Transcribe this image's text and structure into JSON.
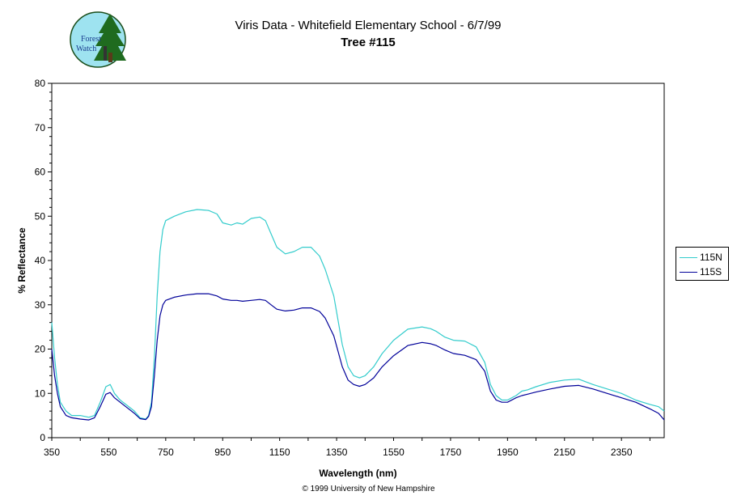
{
  "header": {
    "title": "Viris Data - Whitefield Elementary School - 6/7/99",
    "subtitle": "Tree #115"
  },
  "logo": {
    "text_line1": "Forest",
    "text_line2": "Watch",
    "icon": "tree-logo-icon"
  },
  "footer": {
    "copyright": "© 1999 University of New Hampshire"
  },
  "colors": {
    "series_115N": "#33CCCC",
    "series_115S": "#000099"
  },
  "chart_data": {
    "type": "line",
    "title": "Viris Data - Whitefield Elementary School - 6/7/99",
    "subtitle": "Tree #115",
    "xlabel": "Wavelength (nm)",
    "ylabel": "% Reflectance",
    "xlim": [
      350,
      2500
    ],
    "ylim": [
      0,
      80
    ],
    "xticks": [
      350,
      550,
      750,
      950,
      1150,
      1350,
      1550,
      1750,
      1950,
      2150,
      2350
    ],
    "yticks": [
      0,
      10,
      20,
      30,
      40,
      50,
      60,
      70,
      80
    ],
    "grid": false,
    "legend_position": "right",
    "series": [
      {
        "name": "115N",
        "color": "#33CCCC",
        "x": [
          350,
          360,
          370,
          380,
          400,
          420,
          450,
          480,
          500,
          520,
          540,
          555,
          570,
          590,
          610,
          640,
          660,
          680,
          690,
          700,
          710,
          720,
          730,
          740,
          750,
          780,
          820,
          860,
          900,
          930,
          950,
          980,
          1000,
          1020,
          1050,
          1080,
          1100,
          1120,
          1140,
          1170,
          1200,
          1230,
          1260,
          1290,
          1310,
          1340,
          1370,
          1390,
          1410,
          1430,
          1450,
          1480,
          1510,
          1550,
          1600,
          1650,
          1680,
          1700,
          1730,
          1760,
          1800,
          1840,
          1870,
          1890,
          1910,
          1930,
          1950,
          1980,
          2000,
          2020,
          2050,
          2100,
          2150,
          2200,
          2250,
          2300,
          2350,
          2400,
          2450,
          2480,
          2500
        ],
        "y": [
          26,
          18,
          12,
          8,
          6,
          5,
          5,
          4.6,
          5,
          8,
          11.5,
          12,
          10,
          8.5,
          7.5,
          6,
          4.5,
          4.2,
          5,
          8,
          18,
          32,
          42,
          47,
          49,
          50,
          51,
          51.5,
          51.3,
          50.5,
          48.5,
          48,
          48.5,
          48.2,
          49.5,
          49.8,
          49,
          46,
          43,
          41.5,
          42,
          43,
          43,
          41,
          38,
          32,
          21,
          16,
          14,
          13.5,
          14,
          16,
          19,
          22,
          24.5,
          25,
          24.6,
          24,
          22.7,
          22,
          21.8,
          20.5,
          17,
          12,
          9.5,
          8.5,
          8.5,
          9.5,
          10.5,
          10.8,
          11.5,
          12.5,
          13,
          13.2,
          12,
          11,
          10,
          8.5,
          7.5,
          7,
          6
        ]
      },
      {
        "name": "115S",
        "color": "#000099",
        "x": [
          350,
          360,
          370,
          380,
          400,
          420,
          450,
          480,
          500,
          520,
          540,
          555,
          570,
          590,
          610,
          640,
          660,
          680,
          690,
          700,
          710,
          720,
          730,
          740,
          750,
          780,
          820,
          860,
          900,
          930,
          950,
          980,
          1000,
          1020,
          1050,
          1080,
          1100,
          1120,
          1140,
          1170,
          1200,
          1230,
          1260,
          1290,
          1310,
          1340,
          1370,
          1390,
          1410,
          1430,
          1450,
          1480,
          1510,
          1550,
          1600,
          1650,
          1680,
          1700,
          1730,
          1760,
          1800,
          1840,
          1870,
          1890,
          1910,
          1930,
          1950,
          1980,
          2000,
          2020,
          2050,
          2100,
          2150,
          2200,
          2250,
          2300,
          2350,
          2400,
          2450,
          2480,
          2500
        ],
        "y": [
          20,
          14,
          10,
          7,
          5,
          4.5,
          4.2,
          4,
          4.5,
          7,
          9.8,
          10.2,
          9,
          8,
          7,
          5.5,
          4.3,
          4.1,
          4.8,
          7,
          14,
          22,
          27.5,
          30,
          31,
          31.7,
          32.2,
          32.5,
          32.5,
          32,
          31.3,
          31,
          31,
          30.8,
          31,
          31.2,
          31,
          30,
          29,
          28.6,
          28.8,
          29.3,
          29.3,
          28.5,
          27,
          23,
          16,
          13,
          12,
          11.6,
          12,
          13.5,
          16,
          18.5,
          20.8,
          21.5,
          21.2,
          20.8,
          19.8,
          19,
          18.6,
          17.6,
          15,
          10.5,
          8.5,
          8,
          8,
          9,
          9.5,
          9.8,
          10.3,
          11,
          11.6,
          11.8,
          11,
          10,
          9,
          8,
          6.5,
          5.5,
          4
        ]
      }
    ]
  }
}
